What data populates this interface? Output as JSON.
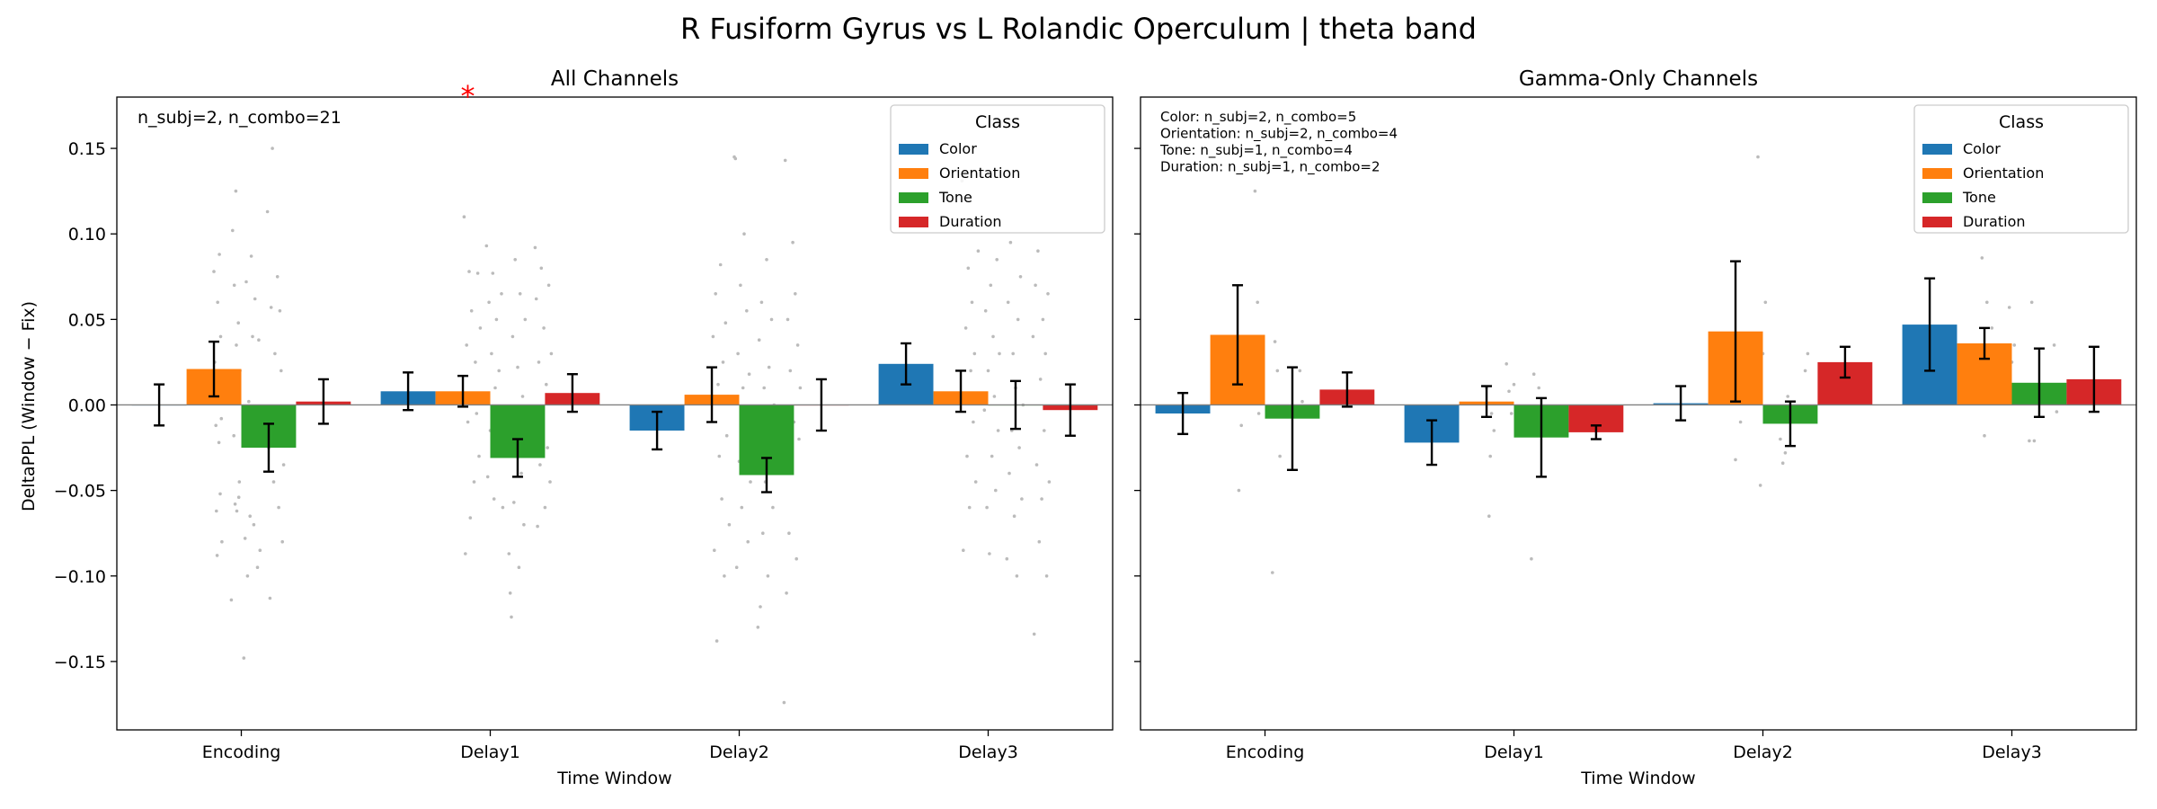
{
  "title": "R Fusiform Gyrus vs L Rolandic Operculum  |  theta band",
  "shared_ylabel": "DeltaPPL (Window − Fix)",
  "colors": {
    "Color": "#1f77b4",
    "Orientation": "#ff7f0e",
    "Tone": "#2ca02c",
    "Duration": "#d62728",
    "scatter": "#bbbbbb",
    "significance": "#ff0000"
  },
  "chart_data": [
    {
      "type": "bar",
      "title": "All Channels",
      "xlabel": "Time Window",
      "ylabel": "DeltaPPL (Window − Fix)",
      "ylim": [
        -0.19,
        0.18
      ],
      "yticks": [
        -0.15,
        -0.1,
        -0.05,
        0.0,
        0.05,
        0.1,
        0.15
      ],
      "ytick_labels": [
        "−0.15",
        "−0.10",
        "−0.05",
        "0.00",
        "0.05",
        "0.10",
        "0.15"
      ],
      "categories": [
        "Encoding",
        "Delay1",
        "Delay2",
        "Delay3"
      ],
      "legend_title": "Class",
      "legend_position": "top-right",
      "annotation": [
        "n_subj=2, n_combo=21"
      ],
      "significance": [
        {
          "category": "Delay1",
          "label": "*"
        }
      ],
      "series": [
        {
          "name": "Color",
          "values": [
            0.0,
            0.008,
            -0.015,
            0.024
          ],
          "err": [
            0.012,
            0.011,
            0.011,
            0.012
          ]
        },
        {
          "name": "Orientation",
          "values": [
            0.021,
            0.008,
            0.006,
            0.008
          ],
          "err": [
            0.016,
            0.009,
            0.016,
            0.012
          ]
        },
        {
          "name": "Tone",
          "values": [
            -0.025,
            -0.031,
            -0.041,
            0.0
          ],
          "err": [
            0.014,
            0.011,
            0.01,
            0.014
          ]
        },
        {
          "name": "Duration",
          "values": [
            0.002,
            0.007,
            0.0,
            -0.003
          ],
          "err": [
            0.013,
            0.011,
            0.015,
            0.015
          ]
        }
      ],
      "scatter_points": [
        [
          -0.11,
          0.078
        ],
        [
          -0.107,
          0.025
        ],
        [
          -0.104,
          0.008
        ],
        [
          -0.102,
          -0.012
        ],
        [
          -0.1,
          -0.062
        ],
        [
          -0.097,
          -0.088
        ],
        [
          -0.095,
          0.06
        ],
        [
          -0.092,
          0.01
        ],
        [
          -0.09,
          -0.022
        ],
        [
          -0.088,
          0.088
        ],
        [
          -0.085,
          -0.052
        ],
        [
          -0.083,
          0.04
        ],
        [
          -0.08,
          -0.008
        ],
        [
          -0.078,
          -0.08
        ],
        [
          -0.045,
          0.005
        ],
        [
          -0.04,
          -0.114
        ],
        [
          -0.035,
          0.102
        ],
        [
          -0.03,
          -0.018
        ],
        [
          -0.028,
          0.07
        ],
        [
          -0.025,
          -0.058
        ],
        [
          -0.022,
          0.125
        ],
        [
          -0.02,
          0.035
        ],
        [
          -0.018,
          -0.062
        ],
        [
          -0.015,
          0.015
        ],
        [
          -0.012,
          0.048
        ],
        [
          -0.01,
          -0.054
        ],
        [
          -0.008,
          -0.045
        ],
        [
          -0.005,
          0.02
        ],
        [
          0.01,
          -0.148
        ],
        [
          0.015,
          -0.078
        ],
        [
          0.02,
          0.072
        ],
        [
          0.025,
          -0.1
        ],
        [
          0.03,
          0.002
        ],
        [
          0.035,
          -0.065
        ],
        [
          0.04,
          0.087
        ],
        [
          0.045,
          0.04
        ],
        [
          0.05,
          -0.07
        ],
        [
          0.055,
          0.062
        ],
        [
          0.06,
          -0.01
        ],
        [
          0.065,
          -0.095
        ],
        [
          0.07,
          0.038
        ],
        [
          0.075,
          -0.085
        ],
        [
          0.105,
          0.113
        ],
        [
          0.11,
          -0.025
        ],
        [
          0.115,
          -0.113
        ],
        [
          0.12,
          0.057
        ],
        [
          0.125,
          0.15
        ],
        [
          0.13,
          -0.045
        ],
        [
          0.135,
          0.03
        ],
        [
          0.14,
          -0.015
        ],
        [
          0.145,
          0.075
        ],
        [
          0.15,
          -0.06
        ],
        [
          0.155,
          0.055
        ],
        [
          0.16,
          0.02
        ],
        [
          0.165,
          -0.08
        ],
        [
          0.17,
          -0.035
        ],
        [
          0.895,
          0.11
        ],
        [
          0.9,
          -0.087
        ],
        [
          0.905,
          0.035
        ],
        [
          0.91,
          -0.01
        ],
        [
          0.915,
          0.078
        ],
        [
          0.92,
          -0.066
        ],
        [
          0.925,
          0.055
        ],
        [
          0.93,
          0.005
        ],
        [
          0.935,
          -0.045
        ],
        [
          0.94,
          0.025
        ],
        [
          0.945,
          -0.005
        ],
        [
          0.95,
          0.077
        ],
        [
          0.955,
          -0.03
        ],
        [
          0.96,
          0.045
        ],
        [
          0.985,
          0.093
        ],
        [
          0.99,
          -0.042
        ],
        [
          0.995,
          0.06
        ],
        [
          1.0,
          -0.015
        ],
        [
          1.005,
          0.03
        ],
        [
          1.01,
          0.077
        ],
        [
          1.015,
          -0.055
        ],
        [
          1.02,
          0.01
        ],
        [
          1.025,
          0.05
        ],
        [
          1.03,
          -0.03
        ],
        [
          1.035,
          0.02
        ],
        [
          1.04,
          -0.008
        ],
        [
          1.045,
          0.065
        ],
        [
          1.05,
          -0.06
        ],
        [
          1.075,
          -0.087
        ],
        [
          1.08,
          -0.11
        ],
        [
          1.085,
          -0.124
        ],
        [
          1.09,
          0.04
        ],
        [
          1.095,
          -0.057
        ],
        [
          1.1,
          0.085
        ],
        [
          1.105,
          -0.02
        ],
        [
          1.11,
          0.022
        ],
        [
          1.115,
          -0.095
        ],
        [
          1.12,
          0.065
        ],
        [
          1.125,
          -0.04
        ],
        [
          1.13,
          0.005
        ],
        [
          1.135,
          -0.07
        ],
        [
          1.14,
          0.05
        ],
        [
          1.18,
          0.092
        ],
        [
          1.185,
          0.062
        ],
        [
          1.19,
          -0.071
        ],
        [
          1.195,
          0.025
        ],
        [
          1.2,
          -0.035
        ],
        [
          1.205,
          0.08
        ],
        [
          1.21,
          -0.01
        ],
        [
          1.215,
          0.045
        ],
        [
          1.22,
          -0.06
        ],
        [
          1.225,
          0.012
        ],
        [
          1.23,
          -0.025
        ],
        [
          1.235,
          0.07
        ],
        [
          1.24,
          -0.045
        ],
        [
          1.245,
          0.03
        ],
        [
          1.895,
          0.04
        ],
        [
          1.9,
          -0.085
        ],
        [
          1.905,
          0.065
        ],
        [
          1.91,
          -0.138
        ],
        [
          1.915,
          0.012
        ],
        [
          1.92,
          -0.03
        ],
        [
          1.925,
          0.082
        ],
        [
          1.93,
          -0.055
        ],
        [
          1.935,
          0.025
        ],
        [
          1.94,
          -0.1
        ],
        [
          1.945,
          0.048
        ],
        [
          1.95,
          -0.018
        ],
        [
          1.955,
          0.005
        ],
        [
          1.96,
          -0.07
        ],
        [
          1.98,
          0.145
        ],
        [
          1.985,
          0.144
        ],
        [
          1.99,
          -0.095
        ],
        [
          1.995,
          0.03
        ],
        [
          2.0,
          -0.033
        ],
        [
          2.005,
          0.07
        ],
        [
          2.01,
          -0.06
        ],
        [
          2.015,
          0.01
        ],
        [
          2.02,
          0.1
        ],
        [
          2.025,
          -0.02
        ],
        [
          2.03,
          0.055
        ],
        [
          2.035,
          -0.08
        ],
        [
          2.04,
          0.018
        ],
        [
          2.045,
          -0.045
        ],
        [
          2.075,
          -0.13
        ],
        [
          2.08,
          0.038
        ],
        [
          2.085,
          -0.118
        ],
        [
          2.09,
          0.06
        ],
        [
          2.095,
          -0.075
        ],
        [
          2.1,
          0.01
        ],
        [
          2.105,
          -0.045
        ],
        [
          2.11,
          0.085
        ],
        [
          2.115,
          -0.1
        ],
        [
          2.12,
          0.022
        ],
        [
          2.125,
          -0.03
        ],
        [
          2.13,
          0.05
        ],
        [
          2.135,
          -0.06
        ],
        [
          2.14,
          0.0
        ],
        [
          2.18,
          -0.174
        ],
        [
          2.185,
          0.143
        ],
        [
          2.19,
          -0.11
        ],
        [
          2.195,
          0.05
        ],
        [
          2.2,
          -0.075
        ],
        [
          2.205,
          0.02
        ],
        [
          2.21,
          -0.04
        ],
        [
          2.215,
          0.095
        ],
        [
          2.22,
          -0.01
        ],
        [
          2.225,
          0.065
        ],
        [
          2.23,
          -0.09
        ],
        [
          2.235,
          0.035
        ],
        [
          2.24,
          -0.02
        ],
        [
          2.245,
          0.01
        ],
        [
          2.895,
          0.131
        ],
        [
          2.9,
          -0.085
        ],
        [
          2.905,
          0.134
        ],
        [
          2.91,
          0.045
        ],
        [
          2.915,
          -0.03
        ],
        [
          2.92,
          0.08
        ],
        [
          2.925,
          -0.06
        ],
        [
          2.93,
          0.02
        ],
        [
          2.935,
          0.06
        ],
        [
          2.94,
          -0.01
        ],
        [
          2.945,
          0.03
        ],
        [
          2.95,
          -0.045
        ],
        [
          2.955,
          0.005
        ],
        [
          2.96,
          0.09
        ],
        [
          2.98,
          0.108
        ],
        [
          2.985,
          -0.003
        ],
        [
          2.99,
          0.055
        ],
        [
          2.995,
          -0.06
        ],
        [
          3.0,
          0.02
        ],
        [
          3.005,
          -0.087
        ],
        [
          3.01,
          0.07
        ],
        [
          3.015,
          -0.03
        ],
        [
          3.02,
          0.04
        ],
        [
          3.025,
          0.005
        ],
        [
          3.03,
          -0.05
        ],
        [
          3.035,
          0.085
        ],
        [
          3.04,
          -0.015
        ],
        [
          3.045,
          0.03
        ],
        [
          3.075,
          -0.09
        ],
        [
          3.08,
          0.06
        ],
        [
          3.085,
          -0.04
        ],
        [
          3.09,
          0.095
        ],
        [
          3.095,
          -0.015
        ],
        [
          3.1,
          0.03
        ],
        [
          3.105,
          -0.065
        ],
        [
          3.11,
          0.01
        ],
        [
          3.115,
          -0.1
        ],
        [
          3.12,
          0.05
        ],
        [
          3.125,
          -0.025
        ],
        [
          3.13,
          0.075
        ],
        [
          3.135,
          -0.055
        ],
        [
          3.14,
          0.0
        ],
        [
          3.18,
          0.04
        ],
        [
          3.185,
          -0.134
        ],
        [
          3.19,
          0.07
        ],
        [
          3.195,
          -0.035
        ],
        [
          3.2,
          0.09
        ],
        [
          3.205,
          -0.08
        ],
        [
          3.21,
          0.015
        ],
        [
          3.215,
          -0.055
        ],
        [
          3.22,
          0.05
        ],
        [
          3.225,
          -0.015
        ],
        [
          3.23,
          0.03
        ],
        [
          3.235,
          -0.1
        ],
        [
          3.24,
          0.065
        ],
        [
          3.245,
          -0.045
        ]
      ]
    },
    {
      "type": "bar",
      "title": "Gamma-Only Channels",
      "xlabel": "Time Window",
      "ylabel": "",
      "ylim": [
        -0.19,
        0.18
      ],
      "yticks": [
        -0.15,
        -0.1,
        -0.05,
        0.0,
        0.05,
        0.1,
        0.15
      ],
      "ytick_labels": [],
      "categories": [
        "Encoding",
        "Delay1",
        "Delay2",
        "Delay3"
      ],
      "legend_title": "Class",
      "legend_position": "top-right",
      "annotation": [
        "Color: n_subj=2, n_combo=5",
        "Orientation: n_subj=2, n_combo=4",
        "Tone: n_subj=1, n_combo=4",
        "Duration: n_subj=1, n_combo=2"
      ],
      "significance": [],
      "series": [
        {
          "name": "Color",
          "values": [
            -0.005,
            -0.022,
            0.001,
            0.047
          ],
          "err": [
            0.012,
            0.013,
            0.01,
            0.027
          ]
        },
        {
          "name": "Orientation",
          "values": [
            0.041,
            0.002,
            0.043,
            0.036
          ],
          "err": [
            0.029,
            0.009,
            0.041,
            0.009
          ]
        },
        {
          "name": "Tone",
          "values": [
            -0.008,
            -0.019,
            -0.011,
            0.013
          ],
          "err": [
            0.03,
            0.023,
            0.013,
            0.02
          ]
        },
        {
          "name": "Duration",
          "values": [
            0.009,
            -0.016,
            0.025,
            0.015
          ],
          "err": [
            0.01,
            0.004,
            0.009,
            0.019
          ]
        }
      ],
      "scatter_points": [
        [
          -0.11,
          0.018
        ],
        [
          -0.105,
          -0.05
        ],
        [
          -0.1,
          0.01
        ],
        [
          -0.095,
          -0.012
        ],
        [
          -0.09,
          0.005
        ],
        [
          -0.04,
          0.125
        ],
        [
          -0.035,
          0.02
        ],
        [
          -0.03,
          0.06
        ],
        [
          -0.025,
          -0.005
        ],
        [
          0.03,
          -0.098
        ],
        [
          0.04,
          0.037
        ],
        [
          0.05,
          0.02
        ],
        [
          0.06,
          -0.03
        ],
        [
          0.14,
          0.02
        ],
        [
          0.15,
          0.002
        ],
        [
          0.89,
          0.01
        ],
        [
          0.9,
          -0.065
        ],
        [
          0.905,
          -0.03
        ],
        [
          0.91,
          -0.005
        ],
        [
          0.92,
          -0.015
        ],
        [
          0.97,
          0.024
        ],
        [
          0.98,
          0.008
        ],
        [
          0.99,
          -0.005
        ],
        [
          1.0,
          0.012
        ],
        [
          1.07,
          -0.09
        ],
        [
          1.08,
          0.018
        ],
        [
          1.09,
          -0.015
        ],
        [
          1.1,
          0.01
        ],
        [
          1.17,
          -0.018
        ],
        [
          1.18,
          -0.01
        ],
        [
          1.88,
          0.034
        ],
        [
          1.89,
          -0.032
        ],
        [
          1.9,
          0.005
        ],
        [
          1.91,
          -0.01
        ],
        [
          1.92,
          0.015
        ],
        [
          1.98,
          0.145
        ],
        [
          1.99,
          -0.047
        ],
        [
          2.0,
          0.03
        ],
        [
          2.01,
          0.06
        ],
        [
          2.07,
          -0.02
        ],
        [
          2.08,
          -0.034
        ],
        [
          2.09,
          -0.028
        ],
        [
          2.1,
          0.005
        ],
        [
          2.17,
          0.02
        ],
        [
          2.18,
          0.03
        ],
        [
          2.88,
          0.086
        ],
        [
          2.89,
          -0.018
        ],
        [
          2.9,
          0.06
        ],
        [
          2.91,
          0.03
        ],
        [
          2.92,
          0.045
        ],
        [
          2.98,
          0.134
        ],
        [
          2.99,
          0.057
        ],
        [
          3.0,
          0.025
        ],
        [
          3.01,
          0.035
        ],
        [
          3.07,
          -0.021
        ],
        [
          3.08,
          0.06
        ],
        [
          3.09,
          -0.021
        ],
        [
          3.1,
          0.01
        ],
        [
          3.17,
          0.035
        ],
        [
          3.18,
          -0.004
        ]
      ]
    }
  ]
}
